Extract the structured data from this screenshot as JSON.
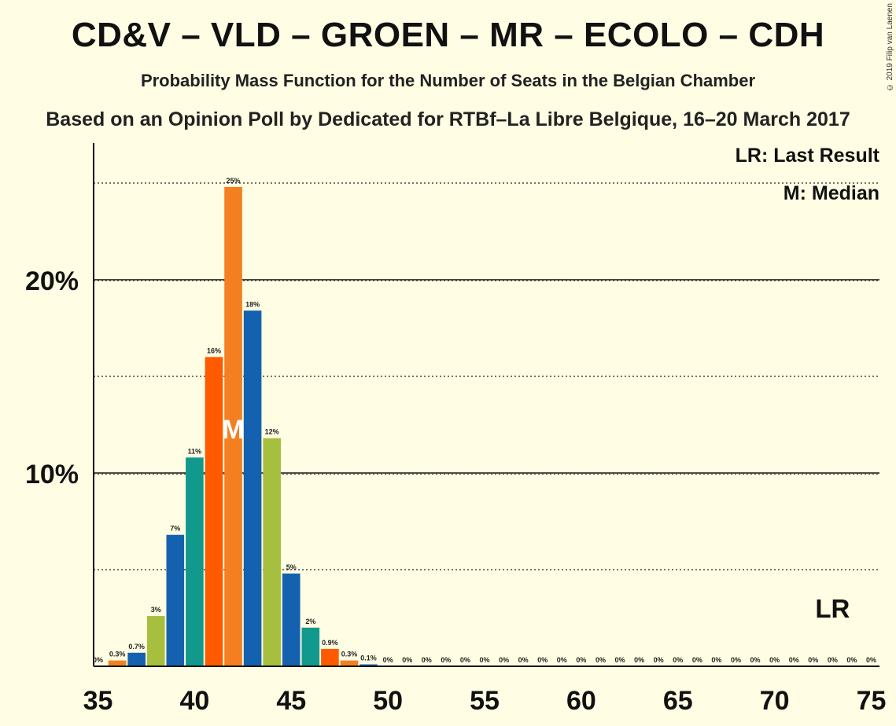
{
  "header": {
    "title": "CD&V – VLD – GROEN – MR – ECOLO – CDH",
    "subtitle": "Probability Mass Function for the Number of Seats in the Belgian Chamber",
    "subtitle2": "Based on an Opinion Poll by Dedicated for RTBf–La Libre Belgique, 16–20 March 2017",
    "copyright": "© 2019 Filip van Laenen"
  },
  "legend": {
    "last_result": "LR: Last Result",
    "median": "M: Median"
  },
  "chart_data": {
    "type": "bar",
    "x": [
      36,
      37,
      38,
      39,
      40,
      41,
      42,
      43,
      44,
      45,
      46,
      47,
      48,
      49,
      50,
      51,
      52,
      53,
      54,
      55,
      56,
      57,
      58,
      59,
      60,
      61,
      62,
      63,
      64,
      65,
      66,
      67,
      68,
      69,
      70,
      71,
      72,
      73,
      74,
      75
    ],
    "values": [
      0.3,
      0.7,
      2.6,
      6.8,
      10.8,
      16.0,
      24.8,
      18.4,
      11.8,
      4.8,
      2.0,
      0.9,
      0.3,
      0.1,
      0,
      0,
      0,
      0,
      0,
      0,
      0,
      0,
      0,
      0,
      0,
      0,
      0,
      0,
      0,
      0,
      0,
      0,
      0,
      0,
      0,
      0,
      0,
      0,
      0,
      0
    ],
    "labels": [
      "0%",
      "0.3%",
      "0.7%",
      "3%",
      "7%",
      "11%",
      "16%",
      "25%",
      "18%",
      "12%",
      "5%",
      "2%",
      "0.9%",
      "0.3%",
      "0.1%",
      "0%",
      "0%",
      "0%",
      "0%",
      "0%",
      "0%",
      "0%",
      "0%",
      "0%",
      "0%",
      "0%",
      "0%",
      "0%",
      "0%",
      "0%",
      "0%",
      "0%",
      "0%",
      "0%",
      "0%",
      "0%",
      "0%",
      "0%",
      "0%",
      "0%",
      "0%"
    ],
    "label_x": [
      35,
      36,
      37,
      38,
      39,
      40,
      41,
      42,
      43,
      44,
      45,
      46,
      47,
      48,
      49,
      50,
      51,
      52,
      53,
      54,
      55,
      56,
      57,
      58,
      59,
      60,
      61,
      62,
      63,
      64,
      65,
      66,
      67,
      68,
      69,
      70,
      71,
      72,
      73,
      74,
      75
    ],
    "xlim": [
      35,
      75
    ],
    "ylim": [
      0,
      27
    ],
    "xticks": [
      35,
      40,
      45,
      50,
      55,
      60,
      65,
      70,
      75
    ],
    "yticks_major": [
      10,
      20
    ],
    "ytick_labels": [
      "10%",
      "20%"
    ],
    "yticks_minor": [
      5,
      15,
      25
    ],
    "median": 42,
    "median_label": "M",
    "last_result": 73,
    "last_result_label": "LR",
    "palette": [
      "#f47f20",
      "#1461b0",
      "#a6bf3e",
      "#1461b0",
      "#11998e",
      "#ff5a00",
      "#f47f20",
      "#1461b0",
      "#a6bf3e",
      "#1461b0",
      "#11998e",
      "#ff5a00",
      "#f47f20",
      "#1461b0"
    ]
  }
}
